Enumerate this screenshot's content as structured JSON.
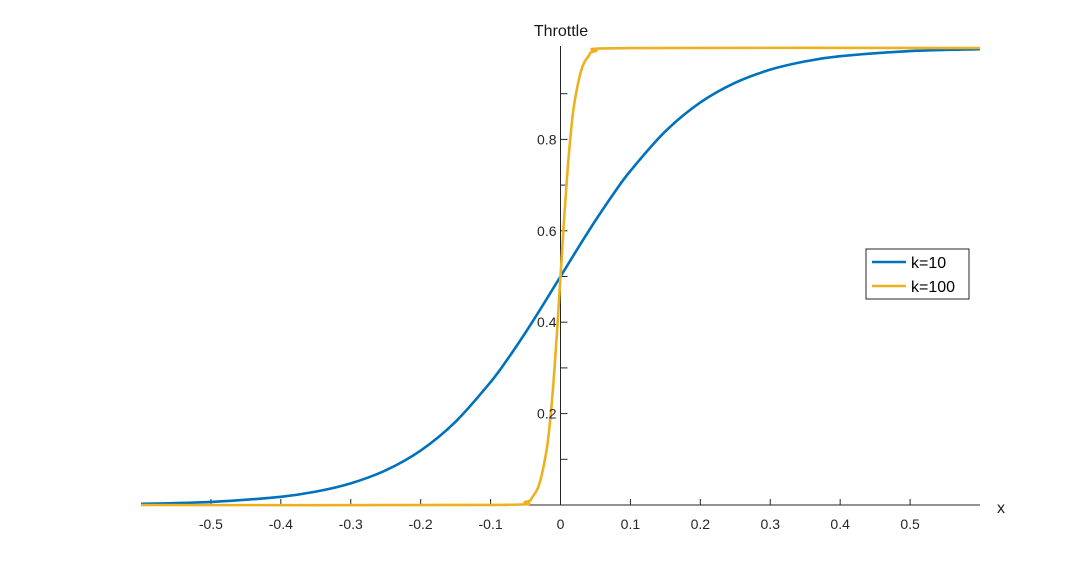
{
  "chart_data": {
    "type": "line",
    "title": "",
    "xlabel": "x",
    "ylabel": "Throttle",
    "xlim": [
      -0.6,
      0.6
    ],
    "ylim": [
      0,
      1
    ],
    "x_ticks": [
      -0.5,
      -0.4,
      -0.3,
      -0.2,
      -0.1,
      0,
      0.1,
      0.2,
      0.3,
      0.4,
      0.5
    ],
    "x_tick_labels": [
      "-0.5",
      "-0.4",
      "-0.3",
      "-0.2",
      "-0.1",
      "0",
      "0.1",
      "0.2",
      "0.3",
      "0.4",
      "0.5"
    ],
    "y_ticks": [
      0.1,
      0.2,
      0.3,
      0.4,
      0.5,
      0.6,
      0.7,
      0.8,
      0.9
    ],
    "y_tick_labels": [
      "",
      "0.2",
      "",
      "0.4",
      "",
      "0.6",
      "",
      "0.8",
      ""
    ],
    "grid": false,
    "axis_location": "origin",
    "legend_position": "right",
    "series": [
      {
        "name": "k=10",
        "color": "#0072BD",
        "x": [
          -0.6,
          -0.5,
          -0.4,
          -0.35,
          -0.3,
          -0.25,
          -0.2,
          -0.15,
          -0.1,
          -0.075,
          -0.05,
          -0.025,
          0,
          0.025,
          0.05,
          0.075,
          0.1,
          0.15,
          0.2,
          0.25,
          0.3,
          0.35,
          0.4,
          0.5,
          0.6
        ],
        "y": [
          0.0025,
          0.0067,
          0.018,
          0.0293,
          0.0474,
          0.0759,
          0.1192,
          0.1824,
          0.2689,
          0.3208,
          0.3775,
          0.4378,
          0.5,
          0.5622,
          0.6225,
          0.6792,
          0.7311,
          0.8176,
          0.8808,
          0.9241,
          0.9526,
          0.9707,
          0.982,
          0.9933,
          0.9975
        ]
      },
      {
        "name": "k=100",
        "color": "#EDB120",
        "x": [
          -0.6,
          -0.1,
          -0.05,
          -0.04,
          -0.03,
          -0.02,
          -0.015,
          -0.01,
          -0.005,
          0,
          0.005,
          0.01,
          0.015,
          0.02,
          0.03,
          0.04,
          0.05,
          0.1,
          0.6
        ],
        "y": [
          0,
          5e-05,
          0.0067,
          0.018,
          0.0474,
          0.1192,
          0.1824,
          0.2689,
          0.3775,
          0.5,
          0.6225,
          0.7311,
          0.8176,
          0.8808,
          0.9526,
          0.982,
          0.9933,
          0.99995,
          1
        ]
      }
    ]
  }
}
